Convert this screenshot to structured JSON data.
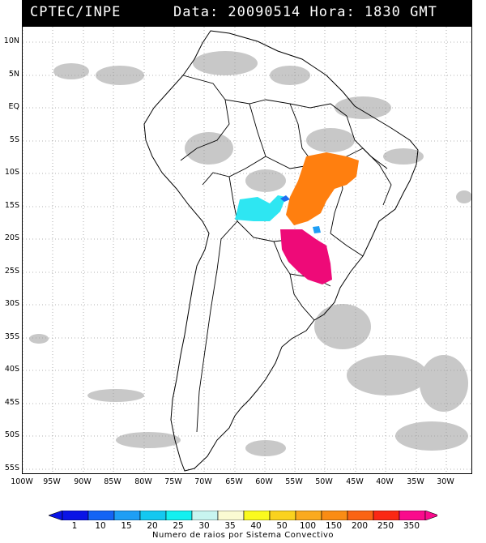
{
  "header": {
    "source": "CPTEC/INPE",
    "datetime": "Data: 20090514 Hora: 1830 GMT"
  },
  "latitude_ticks": [
    "10N",
    "5N",
    "EQ",
    "5S",
    "10S",
    "15S",
    "20S",
    "25S",
    "30S",
    "35S",
    "40S",
    "45S",
    "50S",
    "55S"
  ],
  "longitude_ticks": [
    "100W",
    "95W",
    "90W",
    "85W",
    "80W",
    "75W",
    "70W",
    "65W",
    "60W",
    "55W",
    "50W",
    "45W",
    "40W",
    "35W",
    "30W"
  ],
  "colorbar": {
    "labels": [
      "1",
      "10",
      "15",
      "20",
      "25",
      "30",
      "35",
      "40",
      "50",
      "100",
      "150",
      "200",
      "250",
      "350"
    ],
    "colors": [
      "#0a14e6",
      "#1464f5",
      "#1e9ef5",
      "#14c8f0",
      "#14f0f0",
      "#c8f5f0",
      "#fafad2",
      "#fafa1e",
      "#fad21e",
      "#faaa1e",
      "#fa8c14",
      "#fa6414",
      "#fa2814",
      "#fa0a8c"
    ],
    "title": "Numero de raios por Sistema Convectivo"
  },
  "legend_regions": [
    {
      "name": "cyan-cluster",
      "color": "#2ee6f2"
    },
    {
      "name": "orange-cluster",
      "color": "#ff7f0f"
    },
    {
      "name": "magenta-cluster",
      "color": "#ee0a78"
    },
    {
      "name": "blue-cluster",
      "color": "#1e6ef0"
    }
  ]
}
